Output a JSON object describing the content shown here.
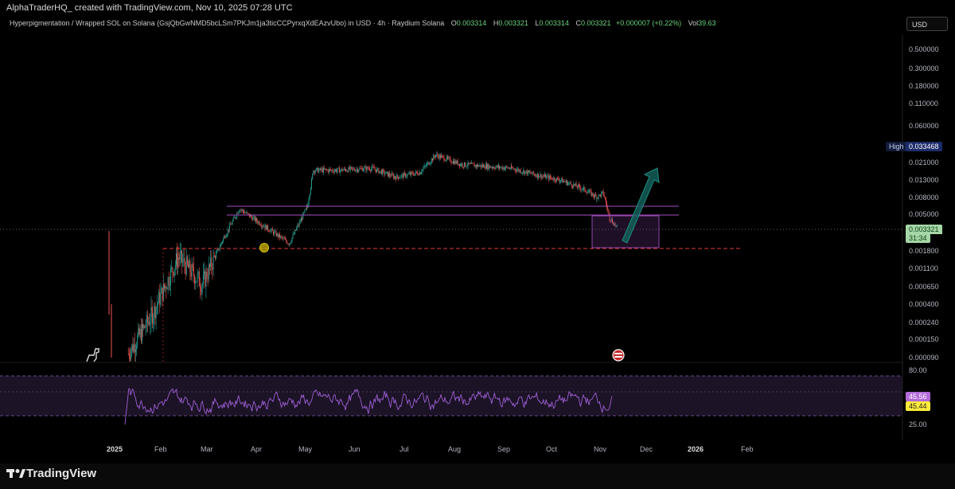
{
  "header": {
    "attribution": "AlphaTraderHQ_ created with TradingView.com, Nov 10, 2025 07:28 UTC",
    "symbol": "Hyperpigmentation / Wrapped SOL on Solana (GsjQbGwNMD5bcLSm7PKJm1ja3ticCCPyrxqXdEAzvUbo) in USD · 4h · Raydium Solana",
    "o_label": "O",
    "o_value": "0.003314",
    "h_label": "H",
    "h_value": "0.003321",
    "l_label": "L",
    "l_value": "0.003314",
    "c_label": "C",
    "c_value": "0.003321",
    "change": "+0.000007 (+0.22%)",
    "vol_label": "Vol",
    "vol_value": "39.63",
    "currency": "USD"
  },
  "price_badges": {
    "high_label": "High",
    "high_value": "0.033468",
    "last_value": "0.003321",
    "countdown": "31:34"
  },
  "rsi_badges": {
    "rsi": "45.56",
    "rsi_ma": "45.44"
  },
  "footer": {
    "logo": "TradingView"
  },
  "colors": {
    "up": "#26a69a",
    "down": "#ef5350",
    "zone": "#8e44ad",
    "rsi": "#9d5fd6",
    "support": "#e53935",
    "last": "#81c784"
  },
  "chart_data": [
    {
      "type": "candlestick",
      "scale": "log",
      "ylim": [
        9e-05,
        0.5
      ],
      "y_ticks": [
        "0.500000",
        "0.300000",
        "0.180000",
        "0.110000",
        "0.060000",
        "0.021000",
        "0.013000",
        "0.008000",
        "0.005000",
        "0.001800",
        "0.001100",
        "0.000650",
        "0.000400",
        "0.000240",
        "0.000150",
        "0.000090"
      ],
      "x_ticks": [
        "2025",
        "Feb",
        "Mar",
        "Apr",
        "May",
        "Jun",
        "Jul",
        "Aug",
        "Sep",
        "Oct",
        "Nov",
        "Dec",
        "2026",
        "Feb"
      ],
      "interval": "4h",
      "monthly_approx_close": {
        "x": [
          "2025-01-10",
          "2025-01-25",
          "2025-02-10",
          "2025-02-25",
          "2025-03-10",
          "2025-03-20",
          "2025-04-05",
          "2025-04-20",
          "2025-05-01",
          "2025-05-05",
          "2025-05-20",
          "2025-06-10",
          "2025-06-25",
          "2025-07-10",
          "2025-07-20",
          "2025-08-05",
          "2025-08-20",
          "2025-09-05",
          "2025-09-20",
          "2025-10-05",
          "2025-10-20",
          "2025-10-28",
          "2025-11-01",
          "2025-11-05",
          "2025-11-10"
        ],
        "y": [
          0.0001,
          0.0003,
          0.0015,
          0.0007,
          0.0025,
          0.0058,
          0.0035,
          0.0022,
          0.006,
          0.017,
          0.017,
          0.018,
          0.014,
          0.016,
          0.026,
          0.02,
          0.019,
          0.018,
          0.015,
          0.013,
          0.01,
          0.008,
          0.009,
          0.0045,
          0.003321
        ]
      },
      "annotations": {
        "resistance_zone": [
          0.0048,
          0.0058
        ],
        "support_line": 0.0019,
        "target_box": [
          0.0019,
          0.0046
        ],
        "projection_arrow": "up",
        "swing_marker": "circle"
      }
    },
    {
      "type": "line",
      "name": "RSI",
      "ylim": [
        0,
        100
      ],
      "y_ticks": [
        "80.00",
        "25.00"
      ],
      "bands": [
        30,
        70
      ],
      "last_values": [
        45.56,
        45.44
      ]
    }
  ]
}
